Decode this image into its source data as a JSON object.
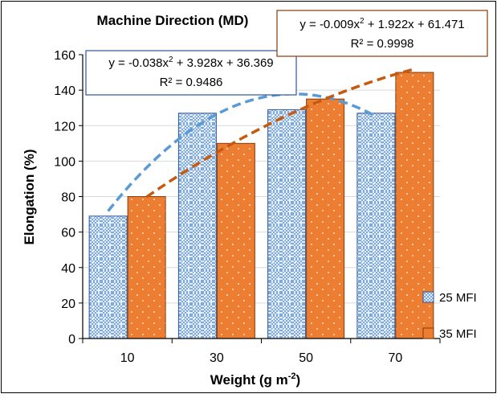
{
  "chart_data": {
    "type": "bar",
    "title": "Machine Direction (MD)",
    "xlabel": "Weight (g m",
    "xlabel_sup": "-2",
    "xlabel_tail": ")",
    "ylabel": "Elongation (%)",
    "categories": [
      "10",
      "30",
      "50",
      "70"
    ],
    "ylim": [
      0,
      160
    ],
    "yticks": [
      0,
      20,
      40,
      60,
      80,
      100,
      120,
      140,
      160
    ],
    "grid": true,
    "legend_position": "bottom-right",
    "series": [
      {
        "name": "25 MFI",
        "values": [
          69,
          127,
          129,
          127
        ],
        "color": "#5b9bd5",
        "fill": "#dbe7f5",
        "pattern": "checker",
        "trendline": {
          "color": "#5b9bd5",
          "coef": [
            -0.038,
            3.928,
            36.369
          ],
          "eq_a": "y = -0.038x",
          "eq_b": " + 3.928x + 36.369",
          "r2": "R² = 0.9486"
        }
      },
      {
        "name": "35 MFI",
        "values": [
          80,
          110,
          135,
          150
        ],
        "color": "#ed7d31",
        "fill": "#ed7d31",
        "pattern": "dots",
        "trendline": {
          "color": "#c55a11",
          "coef": [
            -0.009,
            1.922,
            61.471
          ],
          "eq_a": "y = -0.009x",
          "eq_b": " + 1.922x + 61.471",
          "r2": "R² = 0.9998"
        }
      }
    ],
    "superscript_2": "2"
  }
}
